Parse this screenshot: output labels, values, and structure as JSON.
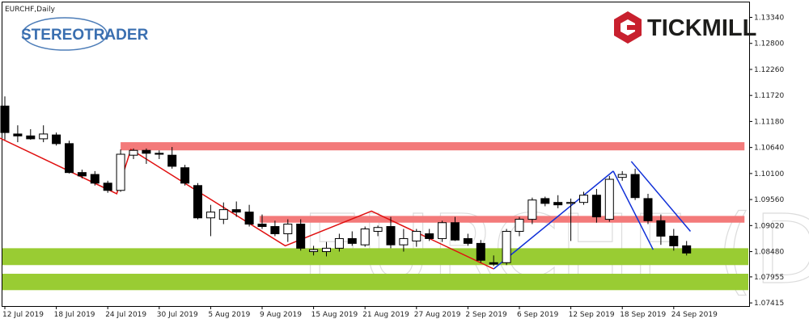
{
  "symbol_label": "EURCHF,Daily",
  "watermark": "EURCHF (D1",
  "brand": {
    "left_logo": "STEREOTRADER",
    "right_logo": "TICKMILL",
    "tickmill_red": "#c8202e",
    "stereo_blue": "#3a6fb0",
    "stereo_grey": "#8a8f97"
  },
  "chart_data": {
    "type": "candlestick",
    "title": "EURCHF,Daily",
    "ylim": [
      1.0735,
      1.1365
    ],
    "y_ticks": [
      "1.13340",
      "1.12800",
      "1.12260",
      "1.11720",
      "1.11180",
      "1.10640",
      "1.10100",
      "1.09560",
      "1.09020",
      "1.08480",
      "1.07955",
      "1.07415"
    ],
    "x_tick_labels": [
      "12 Jul 2019",
      "18 Jul 2019",
      "24 Jul 2019",
      "30 Jul 2019",
      "5 Aug 2019",
      "9 Aug 2019",
      "15 Aug 2019",
      "21 Aug 2019",
      "27 Aug 2019",
      "2 Sep 2019",
      "6 Sep 2019",
      "12 Sep 2019",
      "18 Sep 2019",
      "24 Sep 2019"
    ],
    "x_tick_index": [
      0,
      4,
      8,
      12,
      16,
      20,
      24,
      28,
      32,
      36,
      40,
      44,
      48,
      52
    ],
    "candles": [
      {
        "o": 1.115,
        "h": 1.117,
        "l": 1.108,
        "c": 1.1095
      },
      {
        "o": 1.1092,
        "h": 1.111,
        "l": 1.1075,
        "c": 1.1088
      },
      {
        "o": 1.1088,
        "h": 1.1102,
        "l": 1.108,
        "c": 1.1082
      },
      {
        "o": 1.1082,
        "h": 1.111,
        "l": 1.1075,
        "c": 1.1092
      },
      {
        "o": 1.109,
        "h": 1.1095,
        "l": 1.1068,
        "c": 1.1072
      },
      {
        "o": 1.1072,
        "h": 1.1078,
        "l": 1.101,
        "c": 1.1012
      },
      {
        "o": 1.1012,
        "h": 1.1018,
        "l": 1.1,
        "c": 1.1005
      },
      {
        "o": 1.1008,
        "h": 1.1015,
        "l": 1.0985,
        "c": 1.099
      },
      {
        "o": 1.099,
        "h": 1.0995,
        "l": 1.097,
        "c": 1.0975
      },
      {
        "o": 1.0975,
        "h": 1.106,
        "l": 1.0972,
        "c": 1.105
      },
      {
        "o": 1.1048,
        "h": 1.1062,
        "l": 1.104,
        "c": 1.1058
      },
      {
        "o": 1.1058,
        "h": 1.1062,
        "l": 1.103,
        "c": 1.1052
      },
      {
        "o": 1.1052,
        "h": 1.1058,
        "l": 1.104,
        "c": 1.105
      },
      {
        "o": 1.1048,
        "h": 1.1065,
        "l": 1.102,
        "c": 1.1025
      },
      {
        "o": 1.1022,
        "h": 1.1028,
        "l": 1.0985,
        "c": 1.099
      },
      {
        "o": 1.0985,
        "h": 1.099,
        "l": 1.0915,
        "c": 1.0918
      },
      {
        "o": 1.0918,
        "h": 1.0945,
        "l": 1.088,
        "c": 1.093
      },
      {
        "o": 1.0915,
        "h": 1.095,
        "l": 1.0905,
        "c": 1.0935
      },
      {
        "o": 1.0935,
        "h": 1.0952,
        "l": 1.092,
        "c": 1.093
      },
      {
        "o": 1.093,
        "h": 1.0945,
        "l": 1.09,
        "c": 1.0905
      },
      {
        "o": 1.0905,
        "h": 1.0925,
        "l": 1.0895,
        "c": 1.09
      },
      {
        "o": 1.09,
        "h": 1.0912,
        "l": 1.088,
        "c": 1.0885
      },
      {
        "o": 1.0885,
        "h": 1.0915,
        "l": 1.0868,
        "c": 1.0905
      },
      {
        "o": 1.0905,
        "h": 1.0915,
        "l": 1.085,
        "c": 1.0855
      },
      {
        "o": 1.0848,
        "h": 1.086,
        "l": 1.084,
        "c": 1.0852
      },
      {
        "o": 1.0848,
        "h": 1.0868,
        "l": 1.0838,
        "c": 1.0855
      },
      {
        "o": 1.0855,
        "h": 1.0885,
        "l": 1.0848,
        "c": 1.0875
      },
      {
        "o": 1.0875,
        "h": 1.089,
        "l": 1.086,
        "c": 1.0865
      },
      {
        "o": 1.0862,
        "h": 1.09,
        "l": 1.0858,
        "c": 1.0895
      },
      {
        "o": 1.089,
        "h": 1.0902,
        "l": 1.088,
        "c": 1.0898
      },
      {
        "o": 1.09,
        "h": 1.092,
        "l": 1.0855,
        "c": 1.0862
      },
      {
        "o": 1.0862,
        "h": 1.0895,
        "l": 1.0848,
        "c": 1.0875
      },
      {
        "o": 1.087,
        "h": 1.0895,
        "l": 1.0858,
        "c": 1.089
      },
      {
        "o": 1.0885,
        "h": 1.0895,
        "l": 1.087,
        "c": 1.0875
      },
      {
        "o": 1.0875,
        "h": 1.0912,
        "l": 1.0868,
        "c": 1.0908
      },
      {
        "o": 1.0908,
        "h": 1.092,
        "l": 1.087,
        "c": 1.0872
      },
      {
        "o": 1.0875,
        "h": 1.0885,
        "l": 1.086,
        "c": 1.0865
      },
      {
        "o": 1.0865,
        "h": 1.0872,
        "l": 1.0825,
        "c": 1.083
      },
      {
        "o": 1.0825,
        "h": 1.084,
        "l": 1.0818,
        "c": 1.0822
      },
      {
        "o": 1.0825,
        "h": 1.0895,
        "l": 1.082,
        "c": 1.089
      },
      {
        "o": 1.089,
        "h": 1.092,
        "l": 1.088,
        "c": 1.0915
      },
      {
        "o": 1.0915,
        "h": 1.096,
        "l": 1.0905,
        "c": 1.0955
      },
      {
        "o": 1.0958,
        "h": 1.0962,
        "l": 1.0942,
        "c": 1.0948
      },
      {
        "o": 1.095,
        "h": 1.0965,
        "l": 1.0938,
        "c": 1.0945
      },
      {
        "o": 1.0948,
        "h": 1.0958,
        "l": 1.087,
        "c": 1.095
      },
      {
        "o": 1.095,
        "h": 1.0972,
        "l": 1.0945,
        "c": 1.0965
      },
      {
        "o": 1.0965,
        "h": 1.0978,
        "l": 1.0908,
        "c": 1.092
      },
      {
        "o": 1.0915,
        "h": 1.1005,
        "l": 1.091,
        "c": 1.0998
      },
      {
        "o": 1.1002,
        "h": 1.1015,
        "l": 1.0995,
        "c": 1.1008
      },
      {
        "o": 1.1008,
        "h": 1.102,
        "l": 1.0955,
        "c": 1.096
      },
      {
        "o": 1.0958,
        "h": 1.0968,
        "l": 1.0905,
        "c": 1.0912
      },
      {
        "o": 1.0912,
        "h": 1.0925,
        "l": 1.0862,
        "c": 1.088
      },
      {
        "o": 1.088,
        "h": 1.0895,
        "l": 1.085,
        "c": 1.086
      },
      {
        "o": 1.086,
        "h": 1.087,
        "l": 1.084,
        "c": 1.0845
      }
    ],
    "zones": [
      {
        "name": "resistance-upper",
        "y_low": 1.1058,
        "y_high": 1.1075,
        "x_from": 9,
        "x_to": 57.5,
        "color": "#f37a7a"
      },
      {
        "name": "resistance-lower",
        "y_low": 1.0908,
        "y_high": 1.0922,
        "x_from": 19.8,
        "x_to": 57.5,
        "color": "#f37a7a"
      },
      {
        "name": "support-upper",
        "y_low": 1.082,
        "y_high": 1.0855,
        "x_from": -0.5,
        "x_to": 61.8,
        "color": "#99cc33"
      },
      {
        "name": "support-lower",
        "y_low": 1.0768,
        "y_high": 1.0802,
        "x_from": -0.5,
        "x_to": 61.8,
        "color": "#99cc33"
      }
    ],
    "red_zigzag": [
      [
        -0.5,
        1.1085
      ],
      [
        8.7,
        1.0968
      ],
      [
        9.8,
        1.106
      ],
      [
        14.7,
        1.0978
      ],
      [
        21.8,
        1.086
      ],
      [
        28.5,
        1.0932
      ],
      [
        38.0,
        1.0812
      ]
    ],
    "blue_lines": [
      [
        [
          38.0,
          1.0812
        ],
        [
          47.3,
          1.1015
        ]
      ],
      [
        [
          47.3,
          1.1015
        ],
        [
          50.4,
          1.0852
        ]
      ],
      [
        [
          48.7,
          1.1035
        ],
        [
          53.3,
          1.089
        ]
      ]
    ]
  }
}
